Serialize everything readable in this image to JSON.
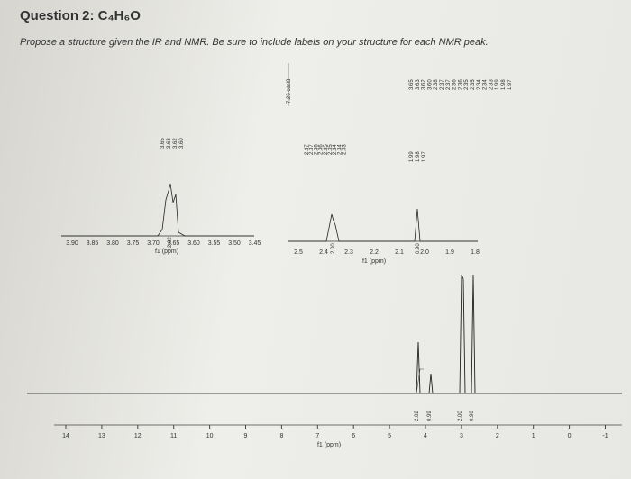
{
  "header": {
    "title": "Question 2: C₄H₆O",
    "instructions": "Propose a structure given the IR and NMR. Be sure to include labels on your structure for each NMR peak."
  },
  "solvent_label": "7.26 cdcl3",
  "top_peak_labels": [
    "3.65",
    "3.63",
    "3.62",
    "3.60",
    "2.38",
    "2.37",
    "2.37",
    "2.36",
    "2.36",
    "2.35",
    "2.35",
    "2.34",
    "2.34",
    "2.33",
    "1.99",
    "1.98",
    "1.97"
  ],
  "main_axis": {
    "ticks": [
      "14",
      "13",
      "12",
      "11",
      "10",
      "9",
      "8",
      "7",
      "6",
      "5",
      "4",
      "3",
      "2",
      "1",
      "0",
      "-1"
    ],
    "label": "f1 (ppm)"
  },
  "integrations": [
    "2.02",
    "0.99",
    "2.00",
    "0.90"
  ],
  "inset_left": {
    "ticks": [
      "3.90",
      "3.85",
      "3.80",
      "3.75",
      "3.70",
      "3.65",
      "3.60",
      "3.55",
      "3.50",
      "3.45"
    ],
    "label": "f1 (ppm)",
    "peak_labels": [
      "3.65",
      "3.63",
      "3.62",
      "3.60"
    ],
    "integration": "2.02"
  },
  "inset_right": {
    "ticks": [
      "2.5",
      "2.4",
      "2.3",
      "2.2",
      "2.1",
      "2.0",
      "1.9",
      "1.8"
    ],
    "label": "f1 (ppm)",
    "peak_labels": [
      "2.37",
      "2.37",
      "2.36",
      "2.36",
      "2.35",
      "2.35",
      "2.34",
      "2.34",
      "2.33"
    ],
    "integration": "2.00",
    "peak_labels_2": [
      "1.99",
      "1.98",
      "1.97"
    ],
    "integration_2": "0.90"
  }
}
